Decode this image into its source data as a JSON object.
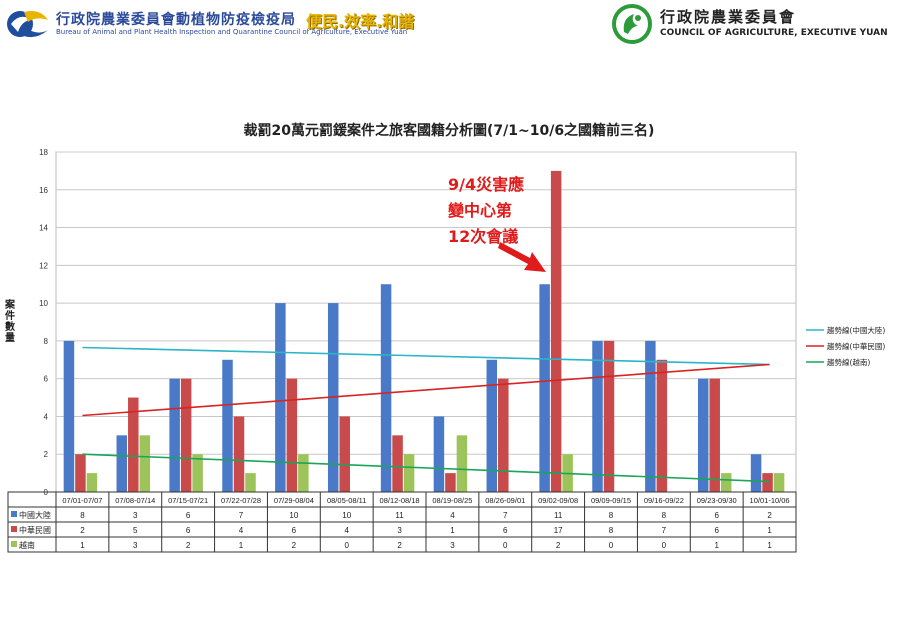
{
  "header": {
    "left_org_zh": "行政院農業委員會動植物防疫檢疫局",
    "left_org_en": "Bureau of Animal and Plant Health Inspection and Quarantine Council of Agriculture, Executive Yuan",
    "slogan": "便民.效率.和諧",
    "right_org_zh": "行政院農業委員會",
    "right_org_en": "COUNCIL OF AGRICULTURE, EXECUTIVE YUAN"
  },
  "annotation": {
    "lines": [
      "9/4災害應",
      "變中心第",
      "12次會議"
    ],
    "color": "#e01b1b"
  },
  "chart_data": {
    "type": "bar",
    "title": "裁罰20萬元罰鍰案件之旅客國籍分析圖(7/1~10/6之國籍前三名)",
    "ylabel": "案件數量",
    "xlabel": "",
    "ylim": [
      0,
      18
    ],
    "yticks": [
      0,
      2,
      4,
      6,
      8,
      10,
      12,
      14,
      16,
      18
    ],
    "grid": true,
    "legend_position": "right",
    "categories": [
      "07/01-07/07",
      "07/08-07/14",
      "07/15-07/21",
      "07/22-07/28",
      "07/29-08/04",
      "08/05-08/11",
      "08/12-08/18",
      "08/19-08/25",
      "08/26-09/01",
      "09/02-09/08",
      "09/09-09/15",
      "09/16-09/22",
      "09/23-09/30",
      "10/01-10/06"
    ],
    "series": [
      {
        "name": "中國大陸",
        "color": "#4a7ac7",
        "values": [
          8,
          3,
          6,
          7,
          10,
          10,
          11,
          4,
          7,
          11,
          8,
          8,
          6,
          2
        ]
      },
      {
        "name": "中華民國",
        "color": "#c94a4a",
        "values": [
          2,
          5,
          6,
          4,
          6,
          4,
          3,
          1,
          6,
          17,
          8,
          7,
          6,
          1
        ]
      },
      {
        "name": "越南",
        "color": "#9cc45a",
        "values": [
          1,
          3,
          2,
          1,
          2,
          0,
          2,
          3,
          0,
          2,
          0,
          0,
          1,
          1
        ]
      }
    ],
    "trendlines": [
      {
        "name": "趨勢線(中國大陸)",
        "color": "#2bb5c9",
        "from": 7.65,
        "to": 6.75
      },
      {
        "name": "趨勢線(中華民國)",
        "color": "#d82424",
        "from": 4.05,
        "to": 6.75
      },
      {
        "name": "趨勢線(越南)",
        "color": "#1aa55a",
        "from": 2.0,
        "to": 0.55
      }
    ]
  }
}
